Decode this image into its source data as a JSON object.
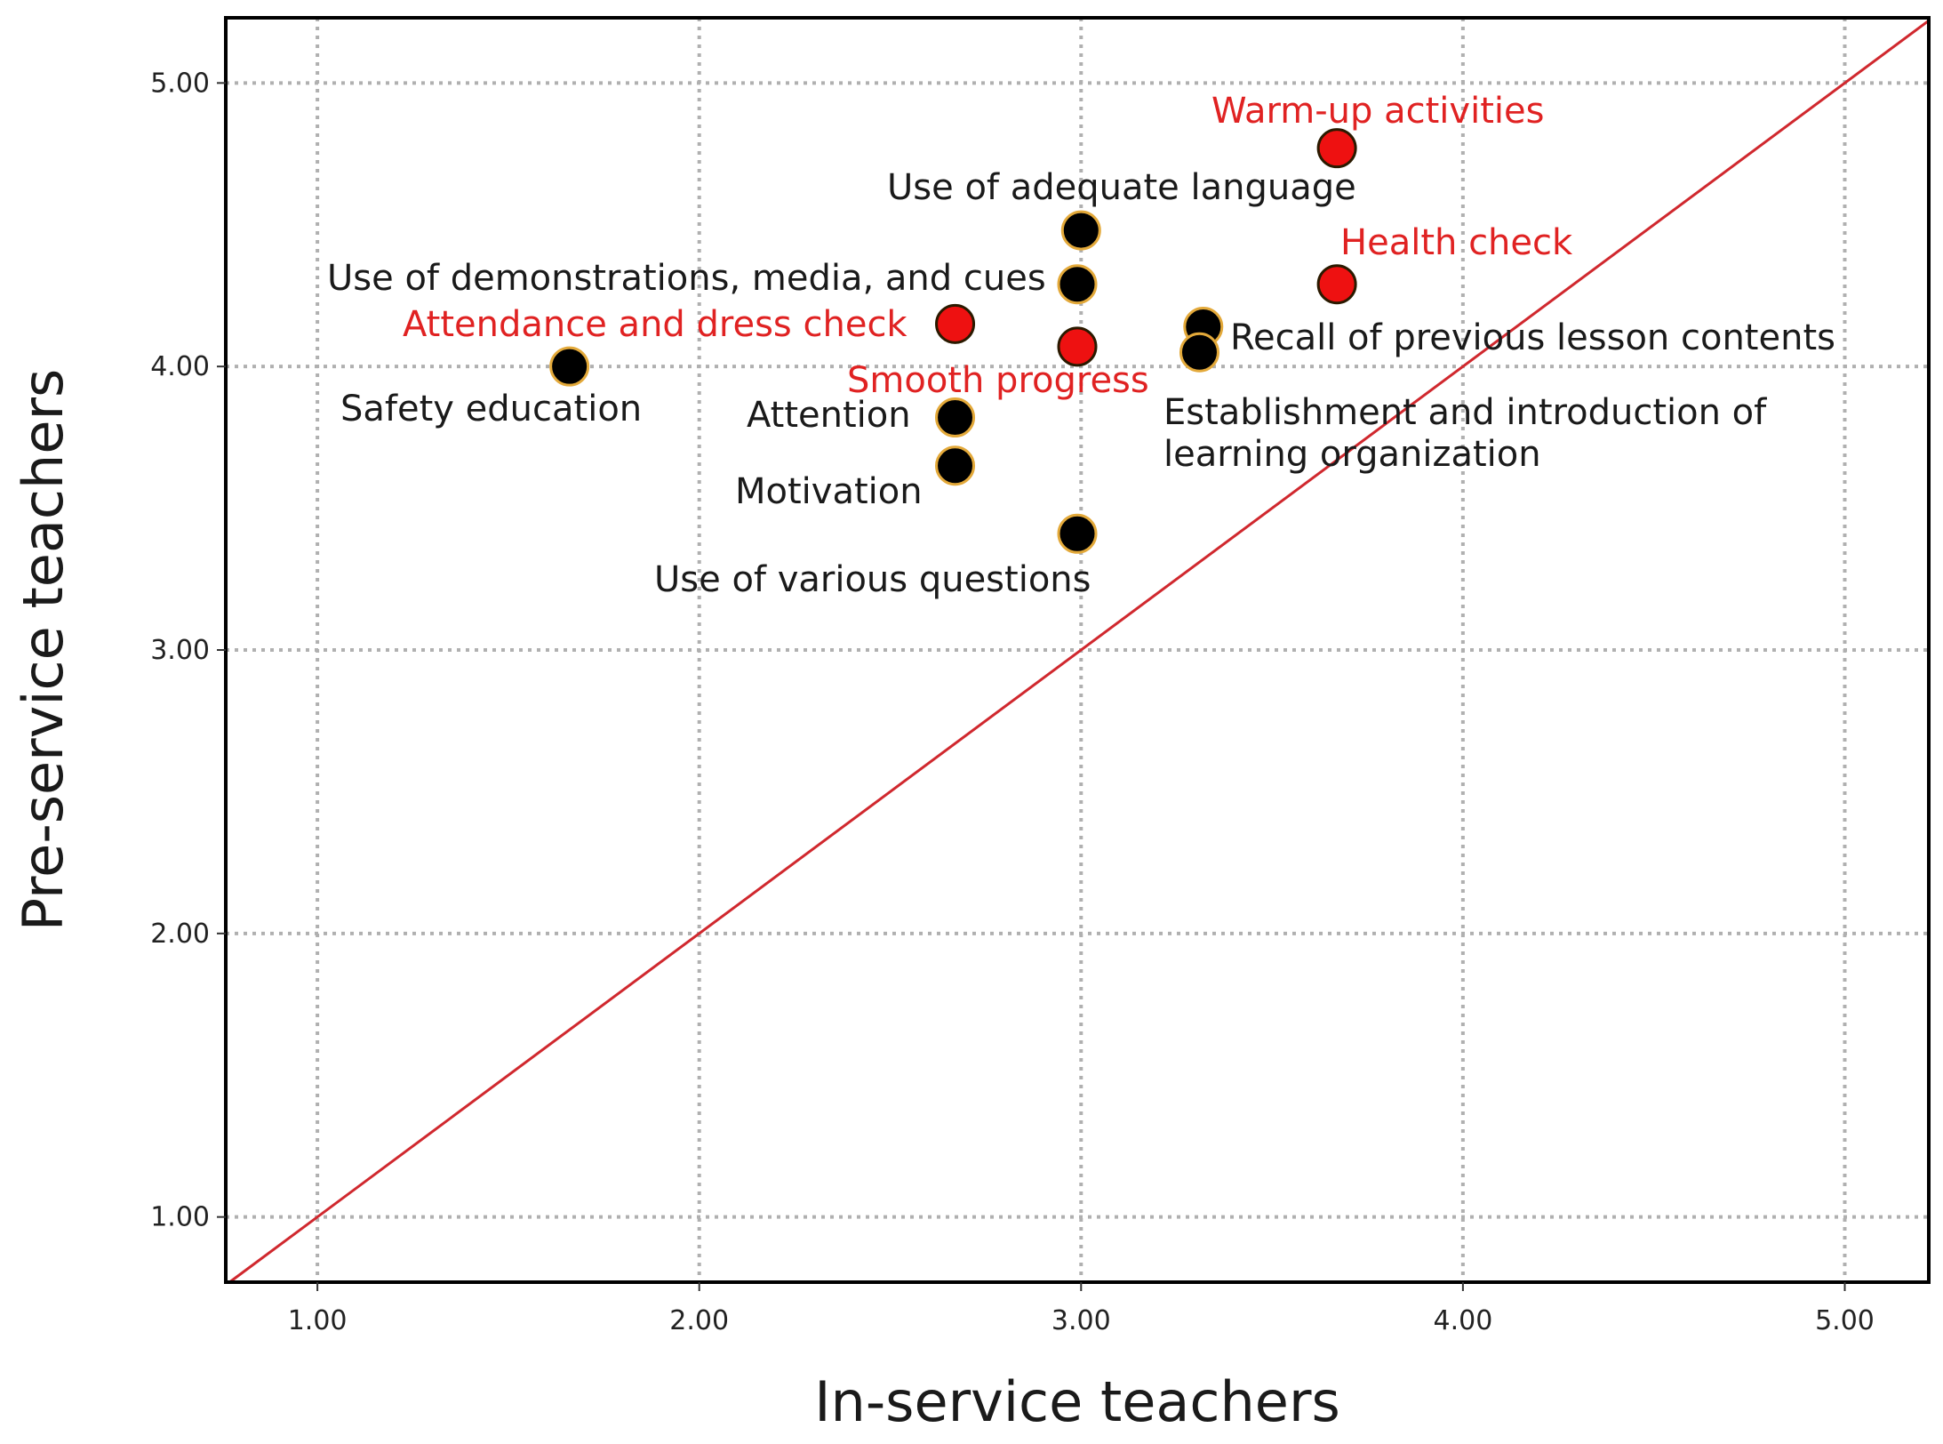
{
  "chart_data": {
    "type": "scatter",
    "title": "",
    "xlabel": "In-service teachers",
    "ylabel": "Pre-service teachers",
    "xlim": [
      0.76,
      5.22
    ],
    "ylim": [
      0.77,
      5.23
    ],
    "xticks": [
      {
        "value": 1,
        "label": "1.00"
      },
      {
        "value": 2,
        "label": "2.00"
      },
      {
        "value": 3,
        "label": "3.00"
      },
      {
        "value": 4,
        "label": "4.00"
      },
      {
        "value": 5,
        "label": "5.00"
      }
    ],
    "yticks": [
      {
        "value": 1,
        "label": "1.00"
      },
      {
        "value": 2,
        "label": "2.00"
      },
      {
        "value": 3,
        "label": "3.00"
      },
      {
        "value": 4,
        "label": "4.00"
      },
      {
        "value": 5,
        "label": "5.00"
      }
    ],
    "grid": true,
    "reference_line": {
      "type": "y=x",
      "color": "#d0282e"
    },
    "colors": {
      "highlight": "#ee1111",
      "normal": "#000000",
      "outline": "#e3a93a",
      "highlight_text": "#e02222",
      "normal_text": "#1a1a1a"
    },
    "points": [
      {
        "name": "Warm-up activities",
        "x": 3.67,
        "y": 4.77,
        "highlight": true
      },
      {
        "name": "Use of adequate language",
        "x": 3.0,
        "y": 4.48,
        "highlight": false
      },
      {
        "name": "Health check",
        "x": 3.67,
        "y": 4.29,
        "highlight": true
      },
      {
        "name": "Use of demonstrations, media, and cues",
        "x": 2.99,
        "y": 4.29,
        "highlight": false
      },
      {
        "name": "Attendance and dress check",
        "x": 2.67,
        "y": 4.15,
        "highlight": true
      },
      {
        "name": "Recall of previous lesson contents",
        "x": 3.32,
        "y": 4.14,
        "highlight": false
      },
      {
        "name": "Smooth progress",
        "x": 2.99,
        "y": 4.07,
        "highlight": true
      },
      {
        "name": "Establishment and introduction of learning organization",
        "x": 3.31,
        "y": 4.05,
        "highlight": false
      },
      {
        "name": "Safety education",
        "x": 1.66,
        "y": 4.0,
        "highlight": false
      },
      {
        "name": "Attention",
        "x": 2.67,
        "y": 3.82,
        "highlight": false
      },
      {
        "name": "Motivation",
        "x": 2.67,
        "y": 3.65,
        "highlight": false
      },
      {
        "name": "Use of various questions",
        "x": 2.99,
        "y": 3.41,
        "highlight": false
      }
    ],
    "labels": [
      {
        "text": "Warm-up activities",
        "highlight": true
      },
      {
        "text": "Use of adequate language",
        "highlight": false
      },
      {
        "text": "Health check",
        "highlight": true
      },
      {
        "text": "Use of demonstrations, media, and cues",
        "highlight": false
      },
      {
        "text": "Attendance and dress check",
        "highlight": true
      },
      {
        "text": "Recall of previous lesson contents",
        "highlight": false
      },
      {
        "text": "Smooth progress",
        "highlight": true
      },
      {
        "text": "Safety education",
        "highlight": false
      },
      {
        "text": "Establishment and introduction of",
        "highlight": false
      },
      {
        "text": "learning organization",
        "highlight": false
      },
      {
        "text": "Attention",
        "highlight": false
      },
      {
        "text": "Motivation",
        "highlight": false
      },
      {
        "text": "Use of various questions",
        "highlight": false
      }
    ]
  }
}
